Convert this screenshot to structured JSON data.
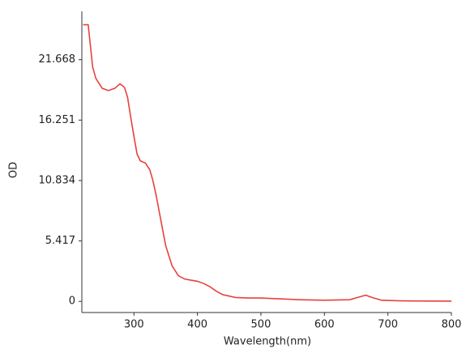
{
  "chart_data": {
    "type": "line",
    "xlabel": "Wavelength(nm)",
    "ylabel": "OD",
    "x": [
      220,
      228,
      235,
      240,
      250,
      260,
      270,
      278,
      285,
      290,
      295,
      300,
      305,
      310,
      318,
      325,
      330,
      335,
      340,
      345,
      350,
      360,
      370,
      380,
      390,
      400,
      410,
      420,
      430,
      440,
      460,
      480,
      500,
      520,
      540,
      560,
      600,
      640,
      655,
      665,
      675,
      690,
      720,
      760,
      800
    ],
    "series": [
      {
        "color": "#e8413c",
        "values": [
          24.8,
          24.8,
          21,
          20,
          19.1,
          18.9,
          19.1,
          19.5,
          19.2,
          18.3,
          16.5,
          14.8,
          13.2,
          12.6,
          12.4,
          11.8,
          10.8,
          9.5,
          8,
          6.5,
          5,
          3.2,
          2.3,
          2.0,
          1.9,
          1.8,
          1.6,
          1.3,
          0.9,
          0.6,
          0.35,
          0.3,
          0.3,
          0.25,
          0.2,
          0.15,
          0.1,
          0.15,
          0.4,
          0.55,
          0.35,
          0.1,
          0.05,
          0.03,
          0.02
        ]
      }
    ],
    "xlim": [
      218,
      800
    ],
    "xticks": [
      300,
      400,
      500,
      600,
      700,
      800
    ],
    "ylim": [
      -1.0,
      26.0
    ],
    "yticks": [
      0,
      5.417,
      10.834,
      16.251,
      21.668
    ]
  }
}
